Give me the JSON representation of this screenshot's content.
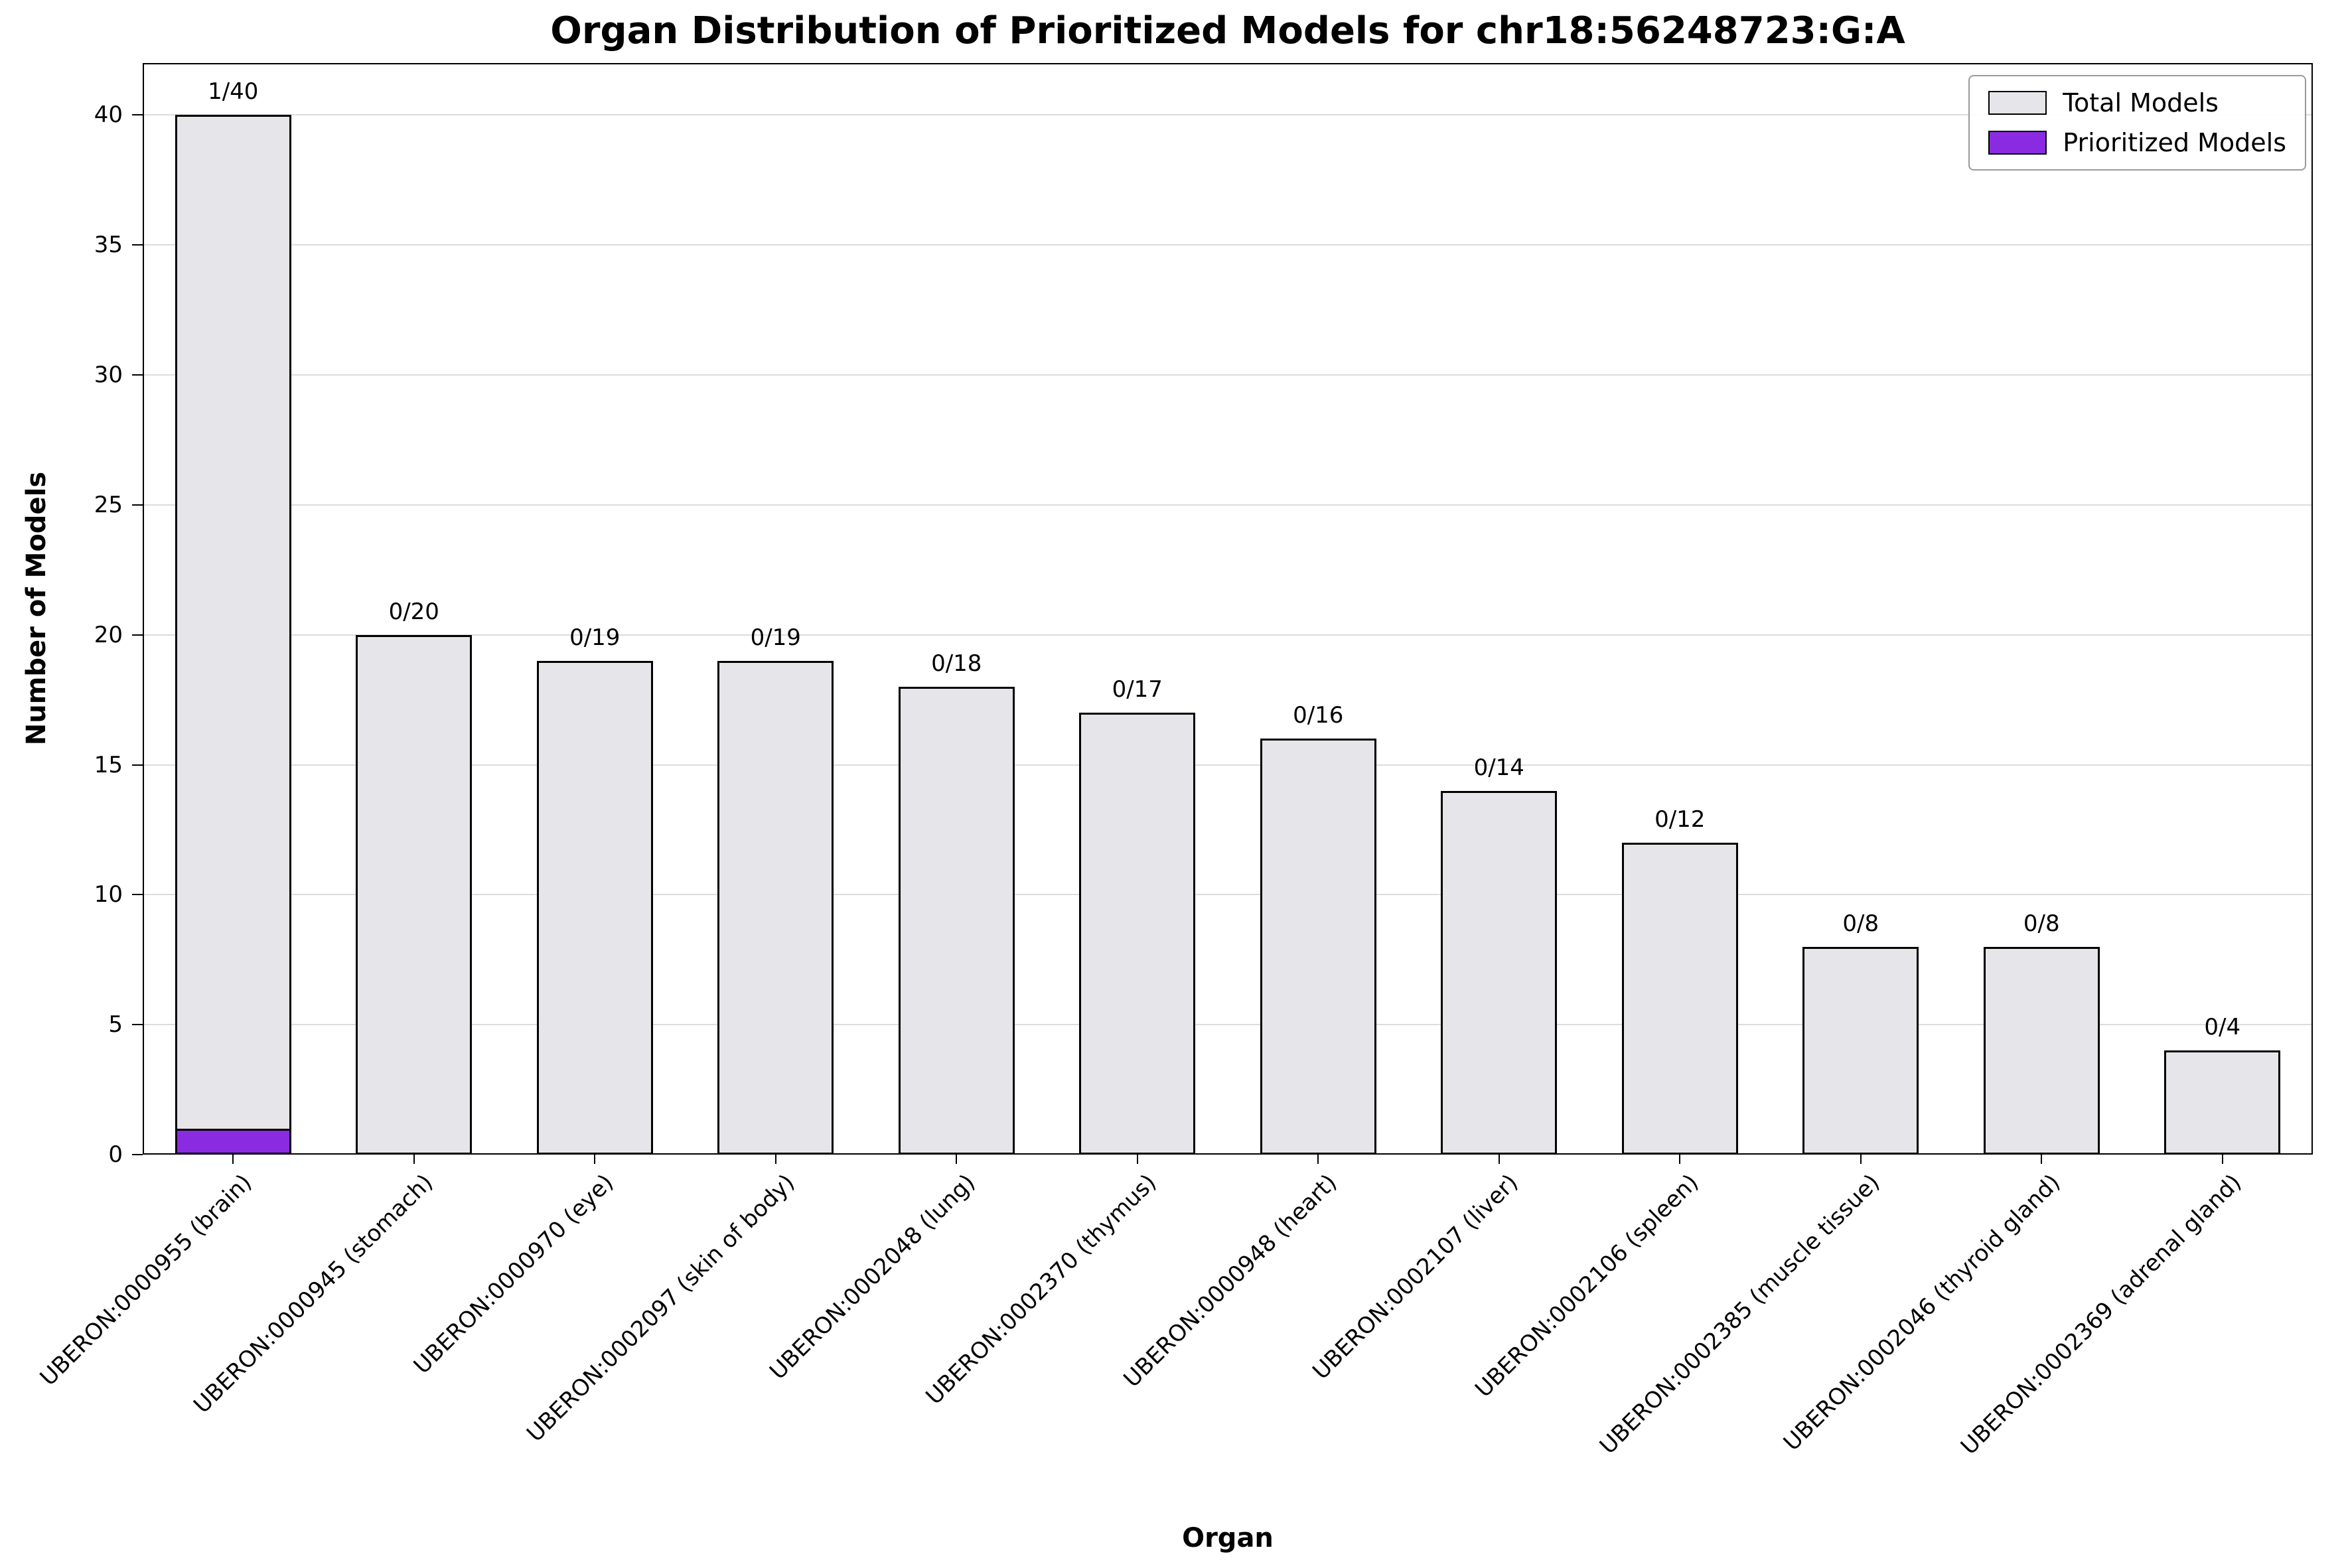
{
  "chart_data": {
    "type": "bar",
    "title": "Organ Distribution of Prioritized Models for chr18:56248723:G:A",
    "xlabel": "Organ",
    "ylabel": "Number of Models",
    "ylim": [
      0,
      42
    ],
    "yticks": [
      0,
      5,
      10,
      15,
      20,
      25,
      30,
      35,
      40
    ],
    "grid": "horizontal",
    "legend_position": "upper right",
    "categories": [
      "UBERON:0000955 (brain)",
      "UBERON:0000945 (stomach)",
      "UBERON:0000970 (eye)",
      "UBERON:0002097 (skin of body)",
      "UBERON:0002048 (lung)",
      "UBERON:0002370 (thymus)",
      "UBERON:0000948 (heart)",
      "UBERON:0002107 (liver)",
      "UBERON:0002106 (spleen)",
      "UBERON:0002385 (muscle tissue)",
      "UBERON:0002046 (thyroid gland)",
      "UBERON:0002369 (adrenal gland)"
    ],
    "series": [
      {
        "name": "Total Models",
        "color": "#e6e6ea",
        "values": [
          40,
          20,
          19,
          19,
          18,
          17,
          16,
          14,
          12,
          8,
          8,
          4
        ]
      },
      {
        "name": "Prioritized Models",
        "color": "#8a2be2",
        "values": [
          1,
          0,
          0,
          0,
          0,
          0,
          0,
          0,
          0,
          0,
          0,
          0
        ]
      }
    ],
    "bar_labels": [
      "1/40",
      "0/20",
      "0/19",
      "0/19",
      "0/18",
      "0/17",
      "0/16",
      "0/14",
      "0/12",
      "0/8",
      "0/8",
      "0/4"
    ],
    "colors": {
      "bar_edge": "#000000",
      "gridline": "#dcdcdc",
      "background": "#ffffff"
    }
  }
}
